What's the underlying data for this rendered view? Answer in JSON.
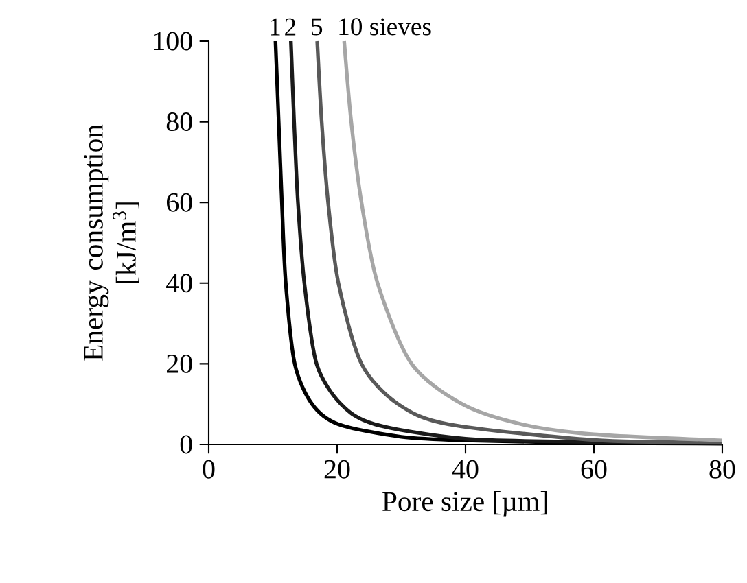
{
  "chart_data": {
    "type": "line",
    "xlabel": "Pore size [µm]",
    "ylabel": "Energy consumption [kJ/m$^{3}$]",
    "xlim": [
      0,
      80
    ],
    "ylim": [
      0,
      100
    ],
    "xticks": [
      0,
      20,
      40,
      60,
      80
    ],
    "yticks": [
      0,
      20,
      40,
      60,
      80,
      100
    ],
    "marker": "none",
    "line_style": "solid",
    "series": [
      {
        "color": "#000000",
        "x": [
          10.4,
          10.9,
          11.4,
          12.0,
          13.4,
          16.1,
          20.2,
          30,
          40,
          60,
          80
        ],
        "values": [
          100,
          80,
          60,
          40,
          20,
          10,
          5,
          1.9,
          1,
          0.4,
          0.2
        ]
      },
      {
        "color": "#1a1a1a",
        "x": [
          12.8,
          13.3,
          13.9,
          14.9,
          16.8,
          20.6,
          25.9,
          40,
          60,
          80
        ],
        "values": [
          100,
          80,
          60,
          40,
          20,
          10,
          5,
          1.4,
          0.6,
          0.3
        ]
      },
      {
        "color": "#595959",
        "x": [
          16.9,
          17.6,
          18.6,
          20.2,
          23.8,
          29.5,
          37.4,
          60,
          80
        ],
        "values": [
          100,
          80,
          60,
          40,
          20,
          10,
          5,
          1.1,
          0.5
        ]
      },
      {
        "color": "#a6a6a6",
        "x": [
          21.1,
          22.2,
          23.8,
          26.3,
          31.6,
          39.5,
          48.8,
          60,
          80
        ],
        "values": [
          100,
          80,
          60,
          40,
          20,
          10,
          5,
          2.5,
          1.0
        ]
      }
    ],
    "annotations": [
      {
        "text": "1",
        "x": 10.4,
        "y": 100
      },
      {
        "text": "2",
        "x": 12.8,
        "y": 100
      },
      {
        "text": "5",
        "x": 16.9,
        "y": 100
      },
      {
        "text": "10 sieves",
        "x": 21.1,
        "y": 100
      }
    ]
  }
}
